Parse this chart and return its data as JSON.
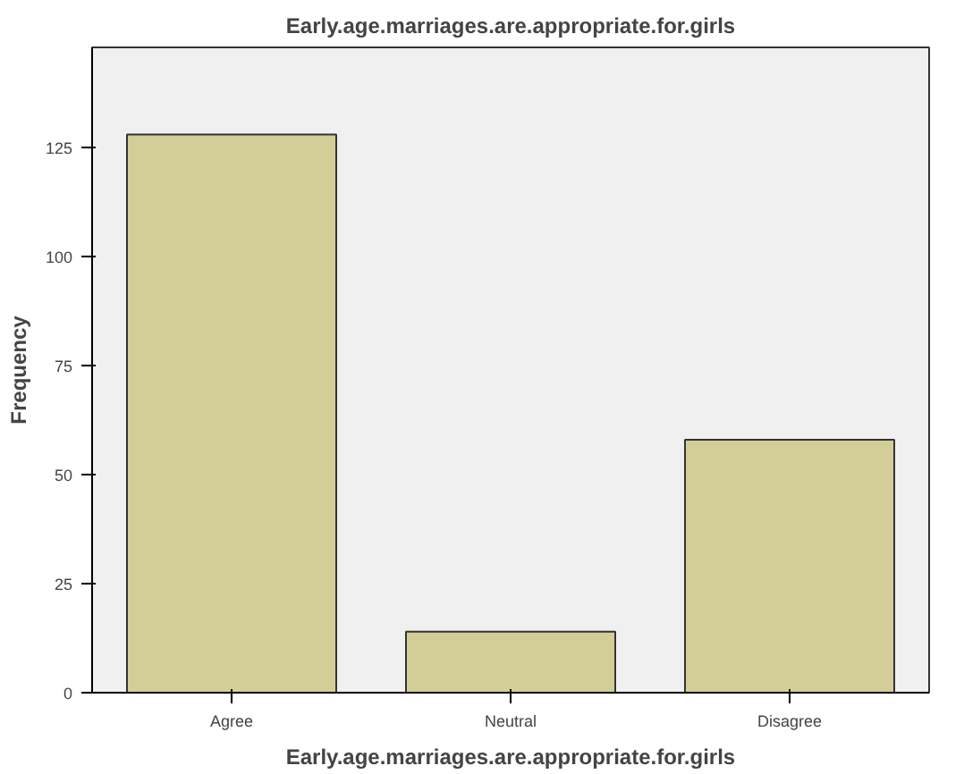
{
  "chart_data": {
    "type": "bar",
    "title": "Early.age.marriages.are.appropriate.for.girls",
    "xlabel": "Early.age.marriages.are.appropriate.for.girls",
    "ylabel": "Frequency",
    "categories": [
      "Agree",
      "Neutral",
      "Disagree"
    ],
    "values": [
      128,
      14,
      58
    ],
    "color": "#d3ce97",
    "ylim": [
      0,
      148
    ],
    "yticks": [
      0,
      25,
      50,
      75,
      100,
      125
    ],
    "grid": false
  }
}
